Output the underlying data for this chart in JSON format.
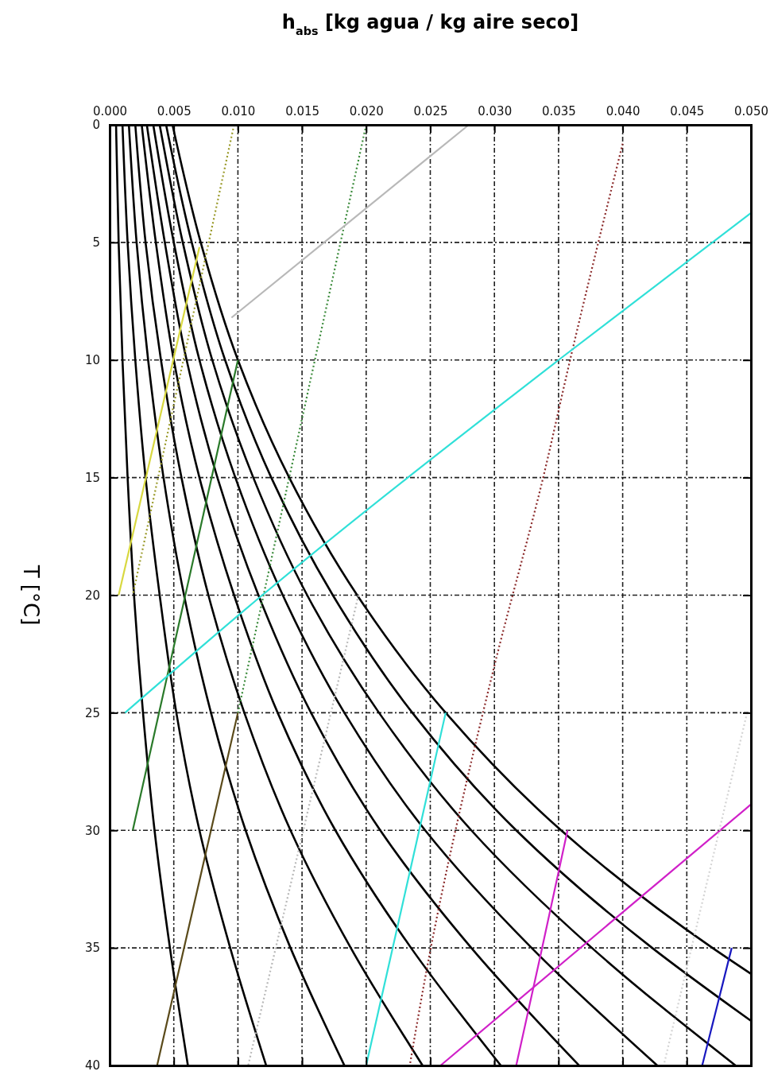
{
  "chart_data": {
    "type": "line",
    "xlabel": "h$_{abs}$ [kg agua / kg aire seco]",
    "ylabel": "T [°C]",
    "xlim": [
      0,
      0.05
    ],
    "ylim": [
      40,
      0
    ],
    "yticks": [
      0,
      5,
      10,
      15,
      20,
      25,
      30,
      35,
      40
    ],
    "xticks": [
      {
        "value": 0,
        "label": "0.000"
      },
      {
        "value": 0.005,
        "label": "0.005"
      },
      {
        "value": 0.01,
        "label": "0.010"
      },
      {
        "value": 0.015,
        "label": "0.015"
      },
      {
        "value": 0.02,
        "label": "0.020"
      },
      {
        "value": 0.025,
        "label": "0.025"
      },
      {
        "value": 0.03,
        "label": "0.030"
      },
      {
        "value": 0.035,
        "label": "0.035"
      },
      {
        "value": 0.04,
        "label": "0.040"
      },
      {
        "value": 0.045,
        "label": "0.045"
      },
      {
        "value": 0.05,
        "label": "0.050"
      }
    ],
    "grid": true,
    "marker": "none",
    "line_style": "solid",
    "series": [
      {
        "color": "#000000",
        "values": [
          0,
          5,
          10,
          15,
          20,
          25,
          30,
          35,
          40
        ],
        "x": [
          0.0005,
          0.0007,
          0.001,
          0.0014,
          0.0019,
          0.0026,
          0.0035,
          0.0047,
          0.0061
        ]
      },
      {
        "color": "#000000",
        "values": [
          0,
          5,
          10,
          15,
          20,
          25,
          30,
          35,
          40
        ],
        "x": [
          0.001,
          0.0014,
          0.002,
          0.0028,
          0.0039,
          0.0052,
          0.007,
          0.0094,
          0.0122
        ]
      },
      {
        "color": "#000000",
        "values": [
          0,
          5,
          10,
          15,
          20,
          25,
          30,
          35,
          40
        ],
        "x": [
          0.0015,
          0.0021,
          0.003,
          0.0042,
          0.0058,
          0.0079,
          0.0106,
          0.0141,
          0.0183
        ]
      },
      {
        "color": "#000000",
        "values": [
          0,
          5,
          10,
          15,
          20,
          25,
          30,
          35,
          40
        ],
        "x": [
          0.002,
          0.0028,
          0.004,
          0.0056,
          0.0077,
          0.0105,
          0.0141,
          0.0188,
          0.0244
        ]
      },
      {
        "color": "#000000",
        "values": [
          0,
          5,
          10,
          15,
          20,
          25,
          30,
          35,
          40
        ],
        "x": [
          0.0025,
          0.0036,
          0.005,
          0.007,
          0.0097,
          0.0131,
          0.0176,
          0.0235,
          0.0305
        ]
      },
      {
        "color": "#000000",
        "values": [
          0,
          5,
          10,
          15,
          20,
          25,
          30,
          35,
          40
        ],
        "x": [
          0.0029,
          0.0043,
          0.006,
          0.0084,
          0.0116,
          0.0157,
          0.0211,
          0.0282,
          0.0366
        ]
      },
      {
        "color": "#000000",
        "values": [
          0,
          5,
          10,
          15,
          20,
          25,
          30,
          35,
          40
        ],
        "x": [
          0.0034,
          0.005,
          0.007,
          0.0098,
          0.0135,
          0.0183,
          0.0246,
          0.0329,
          0.0427
        ]
      },
      {
        "color": "#000000",
        "values": [
          0,
          5,
          10,
          15,
          20,
          25,
          30,
          35,
          40
        ],
        "x": [
          0.0039,
          0.0057,
          0.008,
          0.0112,
          0.0154,
          0.021,
          0.0282,
          0.0376,
          0.0488
        ]
      },
      {
        "color": "#000000",
        "values": [
          0,
          5,
          10,
          15,
          20,
          25,
          30,
          35,
          38.1
        ],
        "x": [
          0.0044,
          0.0064,
          0.009,
          0.0126,
          0.0174,
          0.0236,
          0.0317,
          0.0423,
          0.05
        ]
      },
      {
        "color": "#000000",
        "values": [
          0,
          5,
          10,
          15,
          20,
          25,
          30,
          35,
          36.1
        ],
        "x": [
          0.0049,
          0.0071,
          0.01,
          0.014,
          0.0193,
          0.0262,
          0.0352,
          0.047,
          0.05
        ]
      },
      {
        "color": "#9a9a2a",
        "line_style": "dotted",
        "values": [
          0,
          20
        ],
        "x": [
          0.0097,
          0.0018
        ]
      },
      {
        "color": "#d8d840",
        "values": [
          5.2,
          20
        ],
        "x": [
          0.007,
          0.0007
        ]
      },
      {
        "color": "#3a8a3a",
        "line_style": "dotted",
        "values": [
          0,
          25
        ],
        "x": [
          0.02,
          0.01
        ]
      },
      {
        "color": "#2a7a2a",
        "values": [
          10,
          30
        ],
        "x": [
          0.01,
          0.0018
        ]
      },
      {
        "color": "#5a4a1a",
        "values": [
          25,
          40
        ],
        "x": [
          0.01,
          0.0037
        ]
      },
      {
        "color": "#b8b8b8",
        "values": [
          0,
          8.2
        ],
        "x": [
          0.028,
          0.0095
        ]
      },
      {
        "color": "#b8b8b8",
        "line_style": "dotted",
        "values": [
          20,
          40
        ],
        "x": [
          0.0194,
          0.0108
        ]
      },
      {
        "color": "#8b2a2a",
        "line_style": "dotted",
        "values": [
          0.8,
          10,
          15,
          23,
          35.4,
          40
        ],
        "x": [
          0.04,
          0.0359,
          0.0338,
          0.03,
          0.0249,
          0.0234
        ]
      },
      {
        "color": "#30e0d8",
        "values": [
          3.75,
          10,
          20,
          25
        ],
        "x": [
          0.05,
          0.035,
          0.0119,
          0.0012
        ]
      },
      {
        "color": "#30e0d8",
        "values": [
          25,
          40
        ],
        "x": [
          0.0262,
          0.02
        ]
      },
      {
        "color": "#d020c8",
        "values": [
          30,
          35.3,
          40
        ],
        "x": [
          0.0357,
          0.0336,
          0.0317
        ]
      },
      {
        "color": "#d020c8",
        "values": [
          28.9,
          40
        ],
        "x": [
          0.05,
          0.0258
        ]
      },
      {
        "color": "#1818c0",
        "values": [
          35,
          40
        ],
        "x": [
          0.0485,
          0.0462
        ]
      },
      {
        "color": "#d4d4d4",
        "line_style": "dotted",
        "values": [
          25,
          40
        ],
        "x": [
          0.0497,
          0.0432
        ]
      }
    ]
  }
}
